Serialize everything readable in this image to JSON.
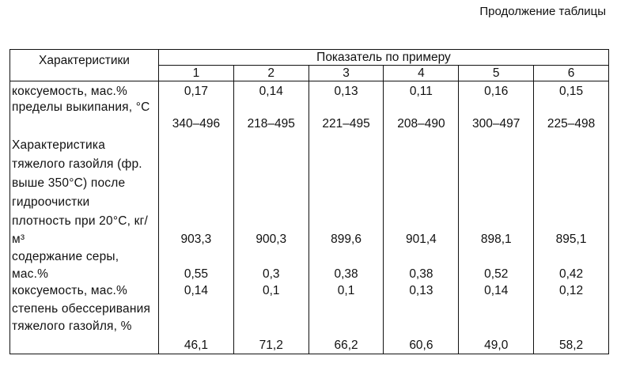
{
  "continuation": "Продолжение таблицы",
  "header": {
    "left": "Характеристики",
    "group": "Показатель по примеру",
    "columns": [
      "1",
      "2",
      "3",
      "4",
      "5",
      "6"
    ]
  },
  "rows": [
    {
      "label": "коксуемость, мас.%",
      "values": [
        "0,17",
        "0,14",
        "0,13",
        "0,11",
        "0,16",
        "0,15"
      ]
    },
    {
      "label": "пределы выкипания, °С",
      "values": [
        "340–496",
        "218–495",
        "221–495",
        "208–490",
        "300–497",
        "225–498"
      ]
    },
    {
      "label": "Характеристика тяжелого газойля (фр. выше 350°С) после гидроочистки",
      "values": [
        "",
        "",
        "",
        "",
        "",
        ""
      ]
    },
    {
      "label": "плотность при 20°С, кг/м³",
      "values": [
        "903,3",
        "900,3",
        "899,6",
        "901,4",
        "898,1",
        "895,1"
      ]
    },
    {
      "label": "содержание серы, мас.%",
      "values": [
        "0,55",
        "0,3",
        "0,38",
        "0,38",
        "0,52",
        "0,42"
      ]
    },
    {
      "label": "коксуемость, мас.%",
      "values": [
        "0,14",
        "0,1",
        "0,1",
        "0,13",
        "0,14",
        "0,12"
      ]
    },
    {
      "label": "степень обессеривания тяжелого газойля, %",
      "values": [
        "46,1",
        "71,2",
        "66,2",
        "60,6",
        "49,0",
        "58,2"
      ]
    }
  ]
}
